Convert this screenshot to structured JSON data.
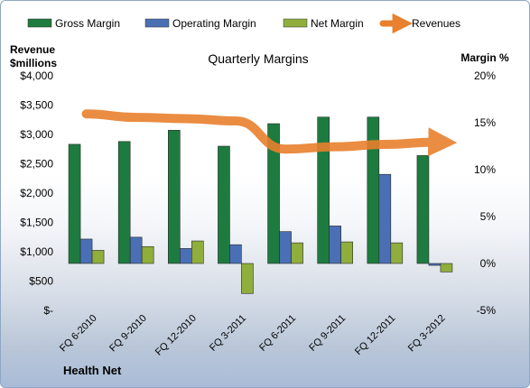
{
  "chart_data": {
    "type": "bar",
    "title": "Quarterly Margins",
    "footer": "Health Net",
    "categories": [
      "FQ 6-2010",
      "FQ 9-2010",
      "FQ 12-2010",
      "FQ 3-2011",
      "FQ 6-2011",
      "FQ 9-2011",
      "FQ 12-2011",
      "FQ 3-2012"
    ],
    "ylabel_left": [
      "Revenue",
      "$millions"
    ],
    "ylabel_right": "Margin %",
    "y_left": {
      "min": 0,
      "max": 4000,
      "step": 500,
      "ticks": [
        "$-",
        "$500",
        "$1,000",
        "$1,500",
        "$2,000",
        "$2,500",
        "$3,000",
        "$3,500",
        "$4,000"
      ]
    },
    "y_right": {
      "min": -5,
      "max": 20,
      "step": 5,
      "ticks": [
        "-5%",
        "0%",
        "5%",
        "10%",
        "15%",
        "20%"
      ]
    },
    "legend_position": "top",
    "series": [
      {
        "name": "Gross Margin",
        "type": "bar",
        "axis": "right",
        "color": "#1e7b3f",
        "values": [
          12.7,
          13.0,
          14.2,
          12.5,
          14.9,
          15.6,
          15.6,
          11.5
        ]
      },
      {
        "name": "Operating Margin",
        "type": "bar",
        "axis": "right",
        "color": "#4a6fb5",
        "values": [
          2.6,
          2.8,
          1.6,
          2.0,
          3.4,
          4.0,
          9.5,
          -0.2
        ]
      },
      {
        "name": "Net Margin",
        "type": "bar",
        "axis": "right",
        "color": "#8fae3c",
        "values": [
          1.4,
          1.8,
          2.4,
          -3.2,
          2.2,
          2.3,
          2.2,
          -0.9
        ]
      },
      {
        "name": "Revenues",
        "type": "line",
        "axis": "left",
        "color": "#e8802e",
        "values": [
          3350,
          3290,
          3270,
          3230,
          2750,
          2790,
          2830,
          2870
        ]
      }
    ]
  }
}
